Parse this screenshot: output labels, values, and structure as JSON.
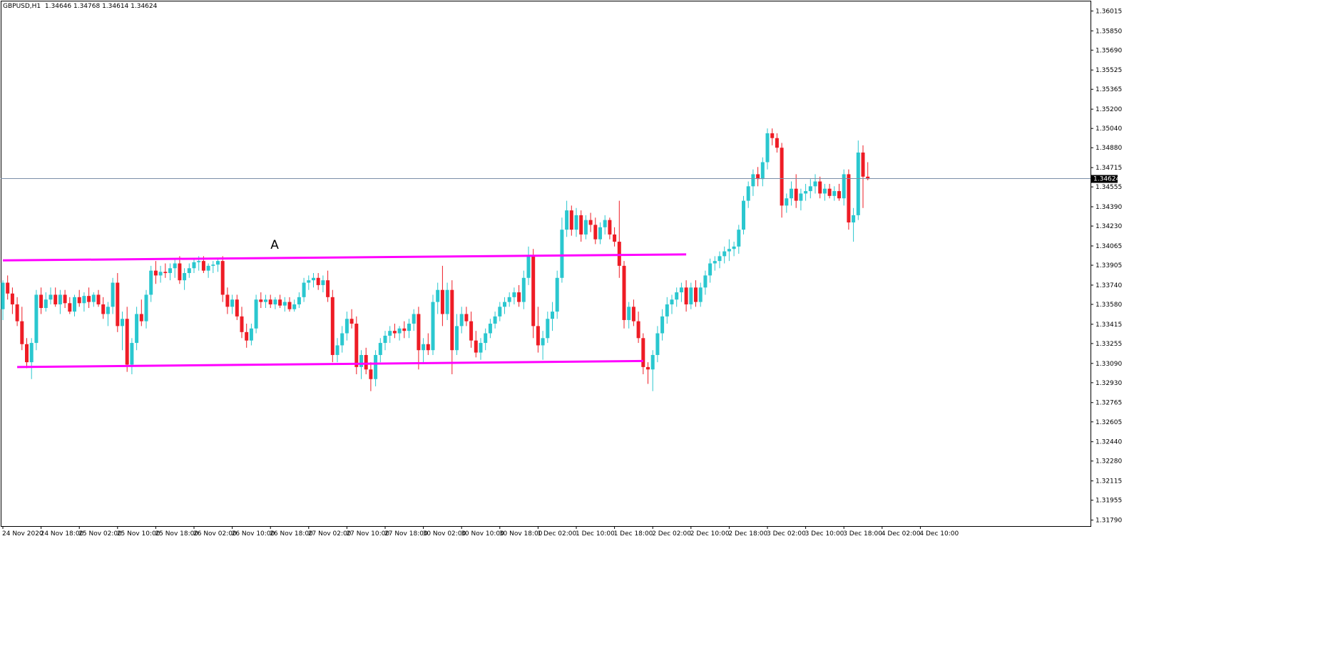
{
  "header": {
    "symbol": "GBPUSD,H1",
    "ohlc": "1.34646 1.34768 1.34614 1.34624"
  },
  "colors": {
    "bull": "#2ac7cf",
    "bear": "#ee1c25",
    "support_resistance": "#ff00ff",
    "price_line": "#7b8fa8",
    "axis": "#000000",
    "background": "#ffffff",
    "price_tag_bg": "#000000",
    "price_tag_text": "#ffffff"
  },
  "chart_data": {
    "type": "candlestick",
    "instrument": "GBPUSD",
    "timeframe": "H1",
    "current_price": "1.34624",
    "y_ticks": [
      "1.36015",
      "1.35850",
      "1.35690",
      "1.35525",
      "1.35365",
      "1.35200",
      "1.35040",
      "1.34880",
      "1.34715",
      "1.34555",
      "1.34390",
      "1.34230",
      "1.34065",
      "1.33905",
      "1.33740",
      "1.33580",
      "1.33415",
      "1.33255",
      "1.33090",
      "1.32930",
      "1.32765",
      "1.32605",
      "1.32440",
      "1.32280",
      "1.32115",
      "1.31955",
      "1.31790"
    ],
    "ylim": [
      1.3174,
      1.361
    ],
    "x_ticks": [
      "24 Nov 2020",
      "24 Nov 18:00",
      "25 Nov 02:00",
      "25 Nov 10:00",
      "25 Nov 18:00",
      "26 Nov 02:00",
      "26 Nov 10:00",
      "26 Nov 18:00",
      "27 Nov 02:00",
      "27 Nov 10:00",
      "27 Nov 18:00",
      "30 Nov 02:00",
      "30 Nov 10:00",
      "30 Nov 18:00",
      "1 Dec 02:00",
      "1 Dec 10:00",
      "1 Dec 18:00",
      "2 Dec 02:00",
      "2 Dec 10:00",
      "2 Dec 18:00",
      "3 Dec 02:00",
      "3 Dec 10:00",
      "3 Dec 18:00",
      "4 Dec 02:00",
      "4 Dec 10:00"
    ],
    "bars_per_tick": 8,
    "candles": [
      [
        1.3354,
        1.3378,
        1.3345,
        1.3376
      ],
      [
        1.3376,
        1.3382,
        1.3362,
        1.3367
      ],
      [
        1.3367,
        1.3372,
        1.335,
        1.3358
      ],
      [
        1.3358,
        1.3364,
        1.334,
        1.3344
      ],
      [
        1.3344,
        1.3356,
        1.332,
        1.3325
      ],
      [
        1.3325,
        1.333,
        1.3305,
        1.331
      ],
      [
        1.331,
        1.333,
        1.3296,
        1.3326
      ],
      [
        1.3326,
        1.337,
        1.332,
        1.3366
      ],
      [
        1.3366,
        1.3372,
        1.335,
        1.3355
      ],
      [
        1.3355,
        1.3368,
        1.3352,
        1.3362
      ],
      [
        1.3362,
        1.3372,
        1.3358,
        1.3366
      ],
      [
        1.3366,
        1.3372,
        1.3356,
        1.3358
      ],
      [
        1.3358,
        1.337,
        1.335,
        1.3366
      ],
      [
        1.3366,
        1.337,
        1.3355,
        1.3359
      ],
      [
        1.3359,
        1.3364,
        1.335,
        1.3352
      ],
      [
        1.3352,
        1.3366,
        1.3348,
        1.3364
      ],
      [
        1.3364,
        1.337,
        1.3356,
        1.3359
      ],
      [
        1.3359,
        1.3368,
        1.3352,
        1.3365
      ],
      [
        1.3365,
        1.3372,
        1.3355,
        1.336
      ],
      [
        1.336,
        1.3368,
        1.3356,
        1.3366
      ],
      [
        1.3366,
        1.337,
        1.3356,
        1.3358
      ],
      [
        1.3358,
        1.3364,
        1.3346,
        1.335
      ],
      [
        1.335,
        1.336,
        1.334,
        1.3356
      ],
      [
        1.3356,
        1.338,
        1.335,
        1.3376
      ],
      [
        1.3376,
        1.3384,
        1.3335,
        1.334
      ],
      [
        1.334,
        1.3352,
        1.332,
        1.3346
      ],
      [
        1.3346,
        1.3356,
        1.3302,
        1.3308
      ],
      [
        1.3308,
        1.333,
        1.33,
        1.3326
      ],
      [
        1.3326,
        1.3356,
        1.332,
        1.335
      ],
      [
        1.335,
        1.3362,
        1.334,
        1.3344
      ],
      [
        1.3344,
        1.337,
        1.3338,
        1.3366
      ],
      [
        1.3366,
        1.339,
        1.336,
        1.3386
      ],
      [
        1.3386,
        1.3394,
        1.3375,
        1.3382
      ],
      [
        1.3382,
        1.339,
        1.3376,
        1.3385
      ],
      [
        1.3385,
        1.3392,
        1.338,
        1.3384
      ],
      [
        1.3384,
        1.3392,
        1.3378,
        1.3388
      ],
      [
        1.3388,
        1.3396,
        1.338,
        1.3392
      ],
      [
        1.3392,
        1.3398,
        1.3375,
        1.3378
      ],
      [
        1.3378,
        1.3388,
        1.337,
        1.3384
      ],
      [
        1.3384,
        1.3392,
        1.338,
        1.3388
      ],
      [
        1.3388,
        1.3396,
        1.3384,
        1.3393
      ],
      [
        1.3393,
        1.3398,
        1.3386,
        1.3394
      ],
      [
        1.3394,
        1.3398,
        1.3384,
        1.3386
      ],
      [
        1.3386,
        1.3392,
        1.338,
        1.339
      ],
      [
        1.339,
        1.3394,
        1.3384,
        1.3391
      ],
      [
        1.3391,
        1.3396,
        1.3385,
        1.3394
      ],
      [
        1.3394,
        1.3398,
        1.336,
        1.3366
      ],
      [
        1.3366,
        1.3372,
        1.335,
        1.3356
      ],
      [
        1.3356,
        1.3366,
        1.335,
        1.3362
      ],
      [
        1.3362,
        1.3366,
        1.3345,
        1.3348
      ],
      [
        1.3348,
        1.3356,
        1.333,
        1.3335
      ],
      [
        1.3335,
        1.3342,
        1.3322,
        1.3328
      ],
      [
        1.3328,
        1.3342,
        1.3324,
        1.3338
      ],
      [
        1.3338,
        1.3366,
        1.3334,
        1.3362
      ],
      [
        1.3362,
        1.3368,
        1.3355,
        1.336
      ],
      [
        1.336,
        1.3366,
        1.3355,
        1.3362
      ],
      [
        1.3362,
        1.3366,
        1.3355,
        1.3358
      ],
      [
        1.3358,
        1.3364,
        1.3354,
        1.3362
      ],
      [
        1.3362,
        1.3366,
        1.3355,
        1.3357
      ],
      [
        1.3357,
        1.3364,
        1.3352,
        1.336
      ],
      [
        1.336,
        1.3364,
        1.3352,
        1.3354
      ],
      [
        1.3354,
        1.3362,
        1.3352,
        1.3358
      ],
      [
        1.3358,
        1.3368,
        1.3355,
        1.3364
      ],
      [
        1.3364,
        1.338,
        1.336,
        1.3376
      ],
      [
        1.3376,
        1.3382,
        1.337,
        1.3378
      ],
      [
        1.3378,
        1.3384,
        1.3372,
        1.338
      ],
      [
        1.338,
        1.3384,
        1.337,
        1.3374
      ],
      [
        1.3374,
        1.3382,
        1.3368,
        1.3378
      ],
      [
        1.3378,
        1.3386,
        1.336,
        1.3364
      ],
      [
        1.3364,
        1.337,
        1.331,
        1.3316
      ],
      [
        1.3316,
        1.333,
        1.331,
        1.3324
      ],
      [
        1.3324,
        1.334,
        1.3318,
        1.3334
      ],
      [
        1.3334,
        1.3352,
        1.3328,
        1.3346
      ],
      [
        1.3346,
        1.3354,
        1.3338,
        1.3342
      ],
      [
        1.3342,
        1.3348,
        1.33,
        1.3306
      ],
      [
        1.3306,
        1.332,
        1.3296,
        1.3316
      ],
      [
        1.3316,
        1.3322,
        1.33,
        1.3304
      ],
      [
        1.3304,
        1.331,
        1.3286,
        1.3296
      ],
      [
        1.3296,
        1.332,
        1.329,
        1.3316
      ],
      [
        1.3316,
        1.333,
        1.331,
        1.3326
      ],
      [
        1.3326,
        1.3336,
        1.332,
        1.3332
      ],
      [
        1.3332,
        1.334,
        1.3326,
        1.3336
      ],
      [
        1.3336,
        1.3342,
        1.333,
        1.3334
      ],
      [
        1.3334,
        1.334,
        1.3328,
        1.3338
      ],
      [
        1.3338,
        1.3344,
        1.333,
        1.3336
      ],
      [
        1.3336,
        1.3346,
        1.333,
        1.3342
      ],
      [
        1.3342,
        1.3354,
        1.3336,
        1.335
      ],
      [
        1.335,
        1.3356,
        1.3304,
        1.332
      ],
      [
        1.332,
        1.333,
        1.331,
        1.3325
      ],
      [
        1.3325,
        1.3334,
        1.3316,
        1.332
      ],
      [
        1.332,
        1.3366,
        1.3316,
        1.336
      ],
      [
        1.336,
        1.3376,
        1.335,
        1.337
      ],
      [
        1.337,
        1.339,
        1.334,
        1.335
      ],
      [
        1.335,
        1.3376,
        1.3345,
        1.337
      ],
      [
        1.337,
        1.3378,
        1.33,
        1.332
      ],
      [
        1.332,
        1.335,
        1.3316,
        1.334
      ],
      [
        1.334,
        1.3356,
        1.3334,
        1.335
      ],
      [
        1.335,
        1.3356,
        1.334,
        1.3344
      ],
      [
        1.3344,
        1.3352,
        1.3322,
        1.3328
      ],
      [
        1.3328,
        1.3336,
        1.3314,
        1.3318
      ],
      [
        1.3318,
        1.333,
        1.3312,
        1.3326
      ],
      [
        1.3326,
        1.3338,
        1.332,
        1.3334
      ],
      [
        1.3334,
        1.3346,
        1.333,
        1.3342
      ],
      [
        1.3342,
        1.3352,
        1.3338,
        1.3348
      ],
      [
        1.3348,
        1.336,
        1.3344,
        1.3356
      ],
      [
        1.3356,
        1.3364,
        1.335,
        1.336
      ],
      [
        1.336,
        1.3368,
        1.3356,
        1.3364
      ],
      [
        1.3364,
        1.3372,
        1.3358,
        1.3368
      ],
      [
        1.3368,
        1.3374,
        1.3356,
        1.336
      ],
      [
        1.336,
        1.3386,
        1.3354,
        1.338
      ],
      [
        1.338,
        1.3406,
        1.3374,
        1.3398
      ],
      [
        1.3398,
        1.3404,
        1.333,
        1.334
      ],
      [
        1.334,
        1.3356,
        1.3318,
        1.3324
      ],
      [
        1.3324,
        1.3336,
        1.3312,
        1.333
      ],
      [
        1.333,
        1.3352,
        1.3326,
        1.3346
      ],
      [
        1.3346,
        1.336,
        1.3336,
        1.3352
      ],
      [
        1.3352,
        1.3386,
        1.3346,
        1.338
      ],
      [
        1.338,
        1.343,
        1.3376,
        1.342
      ],
      [
        1.342,
        1.3444,
        1.3414,
        1.3436
      ],
      [
        1.3436,
        1.344,
        1.3415,
        1.342
      ],
      [
        1.342,
        1.3438,
        1.3414,
        1.3432
      ],
      [
        1.3432,
        1.3436,
        1.341,
        1.3416
      ],
      [
        1.3416,
        1.3432,
        1.3412,
        1.3428
      ],
      [
        1.3428,
        1.3434,
        1.3418,
        1.3424
      ],
      [
        1.3424,
        1.343,
        1.3408,
        1.3412
      ],
      [
        1.3412,
        1.3426,
        1.3408,
        1.3422
      ],
      [
        1.3422,
        1.3432,
        1.3416,
        1.3428
      ],
      [
        1.3428,
        1.343,
        1.3412,
        1.3416
      ],
      [
        1.3416,
        1.3422,
        1.3406,
        1.341
      ],
      [
        1.341,
        1.3444,
        1.338,
        1.339
      ],
      [
        1.339,
        1.3394,
        1.3338,
        1.3345
      ],
      [
        1.3345,
        1.336,
        1.3338,
        1.3356
      ],
      [
        1.3356,
        1.3362,
        1.334,
        1.3344
      ],
      [
        1.3344,
        1.3352,
        1.3326,
        1.333
      ],
      [
        1.333,
        1.3334,
        1.33,
        1.3306
      ],
      [
        1.3306,
        1.331,
        1.3292,
        1.3304
      ],
      [
        1.3304,
        1.332,
        1.3286,
        1.3316
      ],
      [
        1.3316,
        1.334,
        1.331,
        1.3334
      ],
      [
        1.3334,
        1.3354,
        1.3328,
        1.3348
      ],
      [
        1.3348,
        1.3364,
        1.3342,
        1.3358
      ],
      [
        1.3358,
        1.3366,
        1.335,
        1.3362
      ],
      [
        1.3362,
        1.3372,
        1.3356,
        1.3368
      ],
      [
        1.3368,
        1.3376,
        1.336,
        1.3372
      ],
      [
        1.3372,
        1.3378,
        1.3352,
        1.3358
      ],
      [
        1.3358,
        1.3376,
        1.3354,
        1.3372
      ],
      [
        1.3372,
        1.3378,
        1.3356,
        1.336
      ],
      [
        1.336,
        1.3376,
        1.3356,
        1.3372
      ],
      [
        1.3372,
        1.3386,
        1.3366,
        1.3382
      ],
      [
        1.3382,
        1.3396,
        1.3376,
        1.3392
      ],
      [
        1.3392,
        1.3398,
        1.3386,
        1.3394
      ],
      [
        1.3394,
        1.3402,
        1.3388,
        1.3398
      ],
      [
        1.3398,
        1.3406,
        1.3392,
        1.3402
      ],
      [
        1.3402,
        1.3412,
        1.3394,
        1.3404
      ],
      [
        1.3404,
        1.341,
        1.3398,
        1.3406
      ],
      [
        1.3406,
        1.3424,
        1.34,
        1.342
      ],
      [
        1.342,
        1.3448,
        1.3416,
        1.3444
      ],
      [
        1.3444,
        1.346,
        1.3438,
        1.3456
      ],
      [
        1.3456,
        1.347,
        1.3448,
        1.3466
      ],
      [
        1.3466,
        1.3472,
        1.3456,
        1.3462
      ],
      [
        1.3462,
        1.348,
        1.3456,
        1.3476
      ],
      [
        1.3476,
        1.3504,
        1.347,
        1.35
      ],
      [
        1.35,
        1.3504,
        1.349,
        1.3496
      ],
      [
        1.3496,
        1.35,
        1.3484,
        1.3488
      ],
      [
        1.3488,
        1.3492,
        1.343,
        1.344
      ],
      [
        1.344,
        1.345,
        1.3434,
        1.3446
      ],
      [
        1.3446,
        1.346,
        1.344,
        1.3454
      ],
      [
        1.3454,
        1.3466,
        1.3438,
        1.3444
      ],
      [
        1.3444,
        1.3454,
        1.3436,
        1.345
      ],
      [
        1.345,
        1.3458,
        1.3444,
        1.3452
      ],
      [
        1.3452,
        1.3462,
        1.3446,
        1.3456
      ],
      [
        1.3456,
        1.3466,
        1.345,
        1.346
      ],
      [
        1.346,
        1.3464,
        1.3446,
        1.345
      ],
      [
        1.345,
        1.3458,
        1.3444,
        1.3454
      ],
      [
        1.3454,
        1.3458,
        1.3446,
        1.3448
      ],
      [
        1.3448,
        1.3456,
        1.3444,
        1.3452
      ],
      [
        1.3452,
        1.3458,
        1.3444,
        1.3446
      ],
      [
        1.3446,
        1.347,
        1.344,
        1.3466
      ],
      [
        1.3466,
        1.347,
        1.342,
        1.3426
      ],
      [
        1.3426,
        1.3438,
        1.341,
        1.3432
      ],
      [
        1.3432,
        1.3494,
        1.3428,
        1.3484
      ],
      [
        1.3484,
        1.349,
        1.3438,
        1.3464
      ],
      [
        1.3464,
        1.3476,
        1.3461,
        1.3462
      ]
    ],
    "lines": [
      {
        "name": "A",
        "from": [
          0,
          1.33945
        ],
        "to": [
          143,
          1.33995
        ]
      },
      {
        "name": "",
        "from": [
          3,
          1.3306
        ],
        "to": [
          134,
          1.3311
        ]
      }
    ],
    "annotation": {
      "text": "A",
      "bar": 56,
      "price": 1.3404
    },
    "grid": false,
    "legend": "none"
  }
}
